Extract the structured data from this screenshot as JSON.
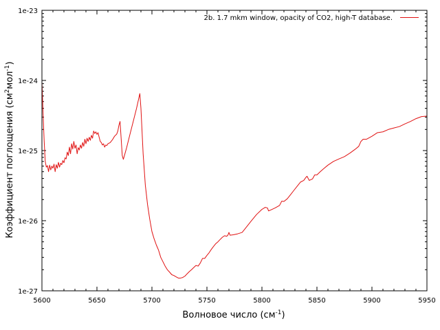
{
  "chart_data": {
    "type": "line",
    "xlabel": "Волновое число (см",
    "xlabel_sup": "-1",
    "xlabel_tail": ")",
    "ylabel": "Коэффициент поглощения (см",
    "ylabel_sup1": "2",
    "ylabel_mid": "мол",
    "ylabel_sup2": "-1",
    "ylabel_tail": ")",
    "xlim": [
      5600,
      5950
    ],
    "ylim": [
      1e-27,
      1e-23
    ],
    "yscale": "log",
    "grid": false,
    "legend_position": "top-right",
    "x_ticks": [
      5600,
      5650,
      5700,
      5750,
      5800,
      5850,
      5900,
      5950
    ],
    "x_tick_labels": [
      "5600",
      "5650",
      "5700",
      "5750",
      "5800",
      "5850",
      "5900",
      "5950"
    ],
    "y_ticks": [
      1e-27,
      1e-26,
      1e-25,
      1e-24,
      1e-23
    ],
    "y_tick_labels": [
      "1e-27",
      "1e-26",
      "1e-25",
      "1e-24",
      "1e-23"
    ],
    "series": [
      {
        "name": "2b. 1.7 mkm window, opacity of CO2, high-T database.",
        "color": "#e01010",
        "points": [
          [
            5600,
            9.5e-25
          ],
          [
            5601,
            3.5e-25
          ],
          [
            5602,
            1.4e-25
          ],
          [
            5603,
            7e-26
          ],
          [
            5604,
            5.8e-26
          ],
          [
            5605,
            6.1e-26
          ],
          [
            5606,
            5e-26
          ],
          [
            5607,
            6.2e-26
          ],
          [
            5608,
            5.3e-26
          ],
          [
            5609,
            6e-26
          ],
          [
            5610,
            5.6e-26
          ],
          [
            5611,
            6.4e-26
          ],
          [
            5612,
            5e-26
          ],
          [
            5613,
            6.3e-26
          ],
          [
            5614,
            5.6e-26
          ],
          [
            5615,
            6.8e-26
          ],
          [
            5616,
            5.8e-26
          ],
          [
            5617,
            6.6e-26
          ],
          [
            5618,
            6.3e-26
          ],
          [
            5619,
            7.2e-26
          ],
          [
            5620,
            6.7e-26
          ],
          [
            5621,
            7.9e-26
          ],
          [
            5622,
            7.6e-26
          ],
          [
            5623,
            9.5e-26
          ],
          [
            5624,
            8.5e-26
          ],
          [
            5625,
            1.12e-25
          ],
          [
            5626,
            9e-26
          ],
          [
            5627,
            1.25e-25
          ],
          [
            5628,
            1.05e-25
          ],
          [
            5629,
            1.35e-25
          ],
          [
            5630,
            1.08e-25
          ],
          [
            5631,
            1.2e-25
          ],
          [
            5632,
            9e-26
          ],
          [
            5633,
            1.1e-25
          ],
          [
            5634,
            1.02e-25
          ],
          [
            5635,
            1.2e-25
          ],
          [
            5636,
            1.08e-25
          ],
          [
            5637,
            1.3e-25
          ],
          [
            5638,
            1.15e-25
          ],
          [
            5639,
            1.45e-25
          ],
          [
            5640,
            1.25e-25
          ],
          [
            5641,
            1.5e-25
          ],
          [
            5642,
            1.35e-25
          ],
          [
            5643,
            1.55e-25
          ],
          [
            5644,
            1.4e-25
          ],
          [
            5645,
            1.65e-25
          ],
          [
            5646,
            1.5e-25
          ],
          [
            5647,
            1.9e-25
          ],
          [
            5648,
            1.75e-25
          ],
          [
            5649,
            1.85e-25
          ],
          [
            5650,
            1.7e-25
          ],
          [
            5651,
            1.8e-25
          ],
          [
            5652,
            1.55e-25
          ],
          [
            5653,
            1.35e-25
          ],
          [
            5654,
            1.3e-25
          ],
          [
            5655,
            1.2e-25
          ],
          [
            5656,
            1.25e-25
          ],
          [
            5657,
            1.12e-25
          ],
          [
            5658,
            1.2e-25
          ],
          [
            5659,
            1.18e-25
          ],
          [
            5660,
            1.25e-25
          ],
          [
            5662,
            1.3e-25
          ],
          [
            5664,
            1.42e-25
          ],
          [
            5666,
            1.6e-25
          ],
          [
            5668,
            1.72e-25
          ],
          [
            5669,
            1.9e-25
          ],
          [
            5670,
            2.3e-25
          ],
          [
            5671,
            2.6e-25
          ],
          [
            5672,
            1.5e-25
          ],
          [
            5673,
            8.5e-26
          ],
          [
            5674,
            7.5e-26
          ],
          [
            5675,
            8.5e-26
          ],
          [
            5677,
            1.1e-25
          ],
          [
            5680,
            1.7e-25
          ],
          [
            5683,
            2.6e-25
          ],
          [
            5686,
            4e-25
          ],
          [
            5689,
            6.5e-25
          ],
          [
            5690,
            4e-25
          ],
          [
            5692,
            9e-26
          ],
          [
            5694,
            3.2e-26
          ],
          [
            5696,
            1.7e-26
          ],
          [
            5698,
            1.05e-26
          ],
          [
            5700,
            7e-27
          ],
          [
            5702,
            5.5e-27
          ],
          [
            5704,
            4.5e-27
          ],
          [
            5706,
            3.8e-27
          ],
          [
            5708,
            3e-27
          ],
          [
            5710,
            2.6e-27
          ],
          [
            5712,
            2.25e-27
          ],
          [
            5714,
            2e-27
          ],
          [
            5716,
            1.85e-27
          ],
          [
            5718,
            1.7e-27
          ],
          [
            5720,
            1.65e-27
          ],
          [
            5722,
            1.58e-27
          ],
          [
            5724,
            1.52e-27
          ],
          [
            5726,
            1.52e-27
          ],
          [
            5728,
            1.55e-27
          ],
          [
            5730,
            1.62e-27
          ],
          [
            5732,
            1.75e-27
          ],
          [
            5734,
            1.88e-27
          ],
          [
            5736,
            2e-27
          ],
          [
            5738,
            2.15e-27
          ],
          [
            5740,
            2.3e-27
          ],
          [
            5742,
            2.25e-27
          ],
          [
            5744,
            2.5e-27
          ],
          [
            5746,
            2.9e-27
          ],
          [
            5748,
            2.9e-27
          ],
          [
            5750,
            3.2e-27
          ],
          [
            5752,
            3.5e-27
          ],
          [
            5754,
            3.9e-27
          ],
          [
            5756,
            4.3e-27
          ],
          [
            5758,
            4.7e-27
          ],
          [
            5760,
            5e-27
          ],
          [
            5762,
            5.4e-27
          ],
          [
            5764,
            5.8e-27
          ],
          [
            5766,
            6.1e-27
          ],
          [
            5768,
            6e-27
          ],
          [
            5769,
            6.2e-27
          ],
          [
            5770,
            6.8e-27
          ],
          [
            5771,
            6.2e-27
          ],
          [
            5774,
            6.3e-27
          ],
          [
            5778,
            6.5e-27
          ],
          [
            5782,
            6.8e-27
          ],
          [
            5785,
            7.8e-27
          ],
          [
            5790,
            9.8e-27
          ],
          [
            5795,
            1.22e-26
          ],
          [
            5800,
            1.45e-26
          ],
          [
            5803,
            1.55e-26
          ],
          [
            5805,
            1.52e-26
          ],
          [
            5806,
            1.38e-26
          ],
          [
            5808,
            1.42e-26
          ],
          [
            5812,
            1.52e-26
          ],
          [
            5816,
            1.65e-26
          ],
          [
            5818,
            1.9e-26
          ],
          [
            5820,
            1.88e-26
          ],
          [
            5823,
            2.05e-26
          ],
          [
            5826,
            2.35e-26
          ],
          [
            5829,
            2.7e-26
          ],
          [
            5832,
            3.1e-26
          ],
          [
            5835,
            3.55e-26
          ],
          [
            5838,
            3.75e-26
          ],
          [
            5840,
            4.15e-26
          ],
          [
            5841,
            4.3e-26
          ],
          [
            5843,
            3.75e-26
          ],
          [
            5846,
            3.95e-26
          ],
          [
            5848,
            4.5e-26
          ],
          [
            5850,
            4.5e-26
          ],
          [
            5853,
            5e-26
          ],
          [
            5856,
            5.5e-26
          ],
          [
            5860,
            6.2e-26
          ],
          [
            5865,
            7e-26
          ],
          [
            5870,
            7.6e-26
          ],
          [
            5875,
            8.2e-26
          ],
          [
            5880,
            9.2e-26
          ],
          [
            5885,
            1.05e-25
          ],
          [
            5888,
            1.15e-25
          ],
          [
            5890,
            1.35e-25
          ],
          [
            5892,
            1.45e-25
          ],
          [
            5895,
            1.45e-25
          ],
          [
            5900,
            1.6e-25
          ],
          [
            5905,
            1.8e-25
          ],
          [
            5910,
            1.85e-25
          ],
          [
            5915,
            2e-25
          ],
          [
            5920,
            2.1e-25
          ],
          [
            5925,
            2.2e-25
          ],
          [
            5930,
            2.4e-25
          ],
          [
            5935,
            2.6e-25
          ],
          [
            5940,
            2.85e-25
          ],
          [
            5945,
            3.05e-25
          ],
          [
            5950,
            3.1e-25
          ]
        ]
      }
    ]
  }
}
